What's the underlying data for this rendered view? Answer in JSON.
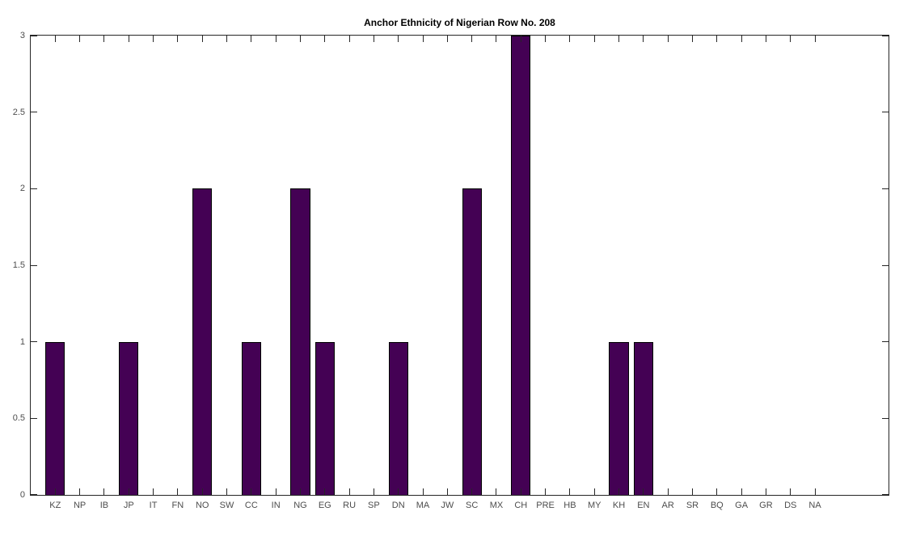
{
  "chart_data": {
    "type": "bar",
    "title": "Anchor Ethnicity of Nigerian Row No. 208",
    "categories": [
      "KZ",
      "NP",
      "IB",
      "JP",
      "IT",
      "FN",
      "NO",
      "SW",
      "CC",
      "IN",
      "NG",
      "EG",
      "RU",
      "SP",
      "DN",
      "MA",
      "JW",
      "SC",
      "MX",
      "CH",
      "PRE",
      "HB",
      "MY",
      "KH",
      "EN",
      "AR",
      "SR",
      "BQ",
      "GA",
      "GR",
      "DS",
      "NA"
    ],
    "values": [
      1,
      0,
      0,
      1,
      0,
      0,
      2,
      0,
      1,
      0,
      2,
      1,
      0,
      0,
      1,
      0,
      0,
      2,
      0,
      3,
      0,
      0,
      0,
      1,
      1,
      0,
      0,
      0,
      0,
      0,
      0,
      0
    ],
    "xlabel": "",
    "ylabel": "",
    "ylim": [
      0,
      3
    ],
    "yticks": [
      0,
      0.5,
      1,
      1.5,
      2,
      2.5,
      3
    ],
    "ytick_labels": [
      "0",
      "0.5",
      "1",
      "1.5",
      "2",
      "2.5",
      "3"
    ],
    "xlim_category_units": [
      0,
      35
    ],
    "bar_width_fraction": 0.8,
    "grid": false,
    "legend": null,
    "colors": {
      "bar_fill": "#440154",
      "bar_edge": "#000000",
      "axis": "#262626",
      "tick_label": "#4d4d4d",
      "title": "#000000",
      "background": "#ffffff"
    }
  }
}
